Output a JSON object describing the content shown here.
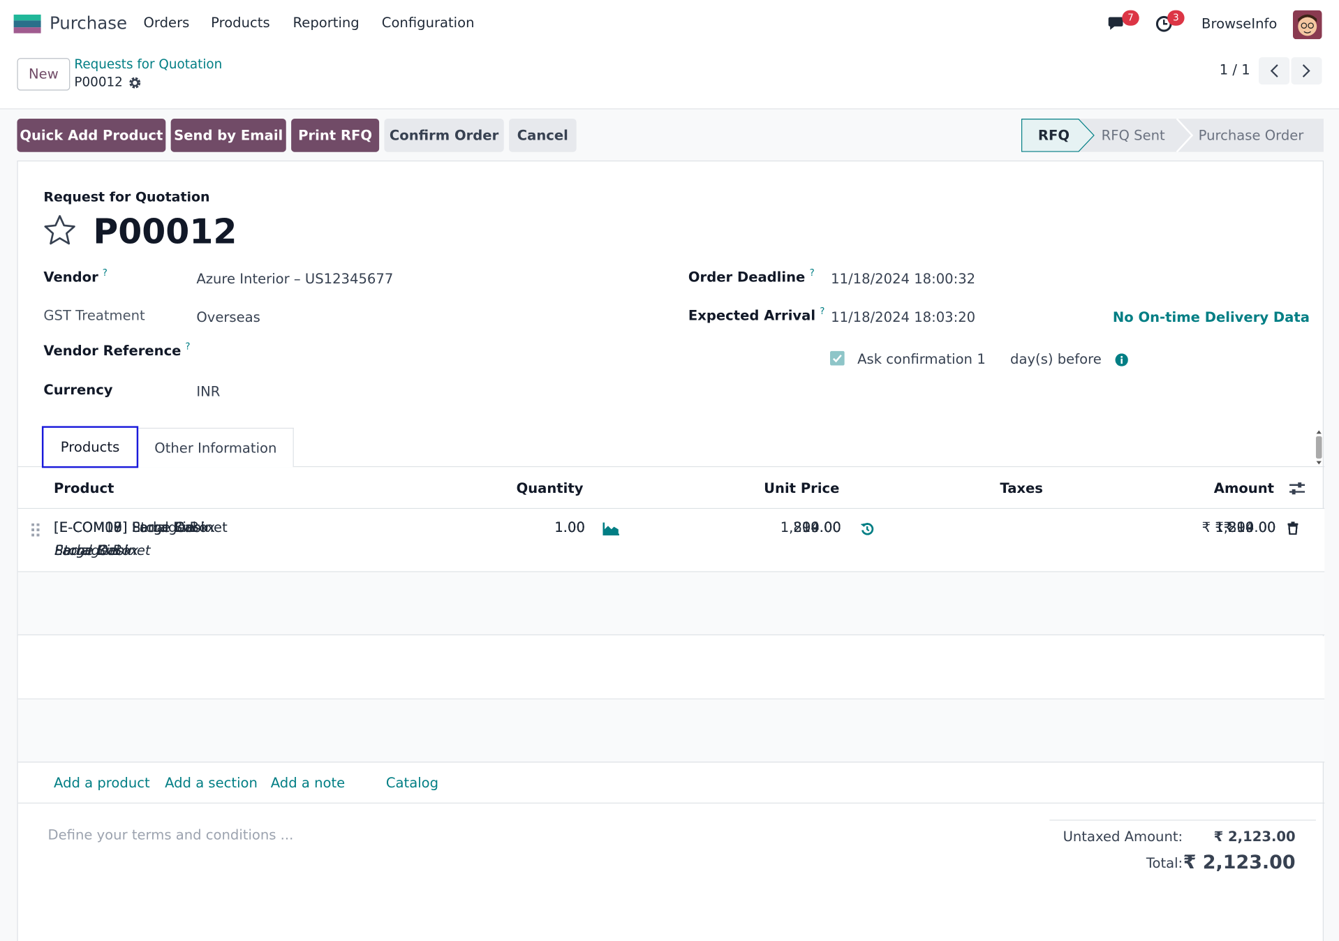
{
  "navbar": {
    "app": "Purchase",
    "menu": [
      "Orders",
      "Products",
      "Reporting",
      "Configuration"
    ],
    "messages_badge": "7",
    "activities_badge": "3",
    "company": "BrowseInfo"
  },
  "control_panel": {
    "new_button": "New",
    "breadcrumb": "Requests for Quotation",
    "record": "P00012",
    "pager": "1 / 1"
  },
  "actions": [
    "Quick Add Product",
    "Send by Email",
    "Print RFQ",
    "Confirm Order",
    "Cancel"
  ],
  "status": [
    "RFQ",
    "RFQ Sent",
    "Purchase Order"
  ],
  "form": {
    "subtitle": "Request for Quotation",
    "name": "P00012",
    "left_fields": [
      {
        "label": "Vendor",
        "help": "?",
        "value": "Azure Interior – US12345677"
      },
      {
        "label": "GST Treatment",
        "value": "Overseas"
      },
      {
        "label": "Vendor Reference",
        "help": "?"
      },
      {
        "label": "Currency",
        "value": "INR"
      }
    ],
    "right_fields": [
      {
        "label": "Order Deadline",
        "help": "?",
        "value": "11/18/2024 18:00:32"
      },
      {
        "label": "Expected Arrival",
        "help": "?",
        "value": "11/18/2024 18:03:20"
      }
    ],
    "delivery_info": "No On-time Delivery Data",
    "ask_confirmation": {
      "label": "Ask confirmation",
      "days": "1",
      "suffix": "day(s) before"
    }
  },
  "tabs": [
    "Products",
    "Other Information"
  ],
  "table": {
    "headers": [
      "Product",
      "Quantity",
      "Unit Price",
      "Taxes",
      "Amount"
    ],
    "rows": [
      {
        "product": "[E-COM07] Large Cabinet",
        "description": "Large Cabinet",
        "quantity": "1.00",
        "unit_price": "800.00",
        "amount": "₹ 800.00"
      },
      {
        "product": "[E-COM08] Storage Box",
        "description": "Storage Box",
        "quantity": "1.00",
        "unit_price": "14.00",
        "amount": "₹ 14.00"
      },
      {
        "product": "[E-COM09] Large Desk",
        "description": "Large Desk",
        "quantity": "1.00",
        "unit_price": "1,299.00",
        "amount": "₹ 1,299.00"
      },
      {
        "product": "[E-COM10] Pedal Bin",
        "description": "Pedal Bin",
        "quantity": "1.00",
        "unit_price": "10.00",
        "amount": "₹ 10.00"
      }
    ],
    "add_links": [
      "Add a product",
      "Add a section",
      "Add a note",
      "Catalog"
    ]
  },
  "terms_placeholder": "Define your terms and conditions ...",
  "totals": [
    {
      "label": "Untaxed Amount:",
      "value": "₹ 2,123.00"
    },
    {
      "label": "Total:",
      "value": "₹ 2,123.00"
    }
  ]
}
